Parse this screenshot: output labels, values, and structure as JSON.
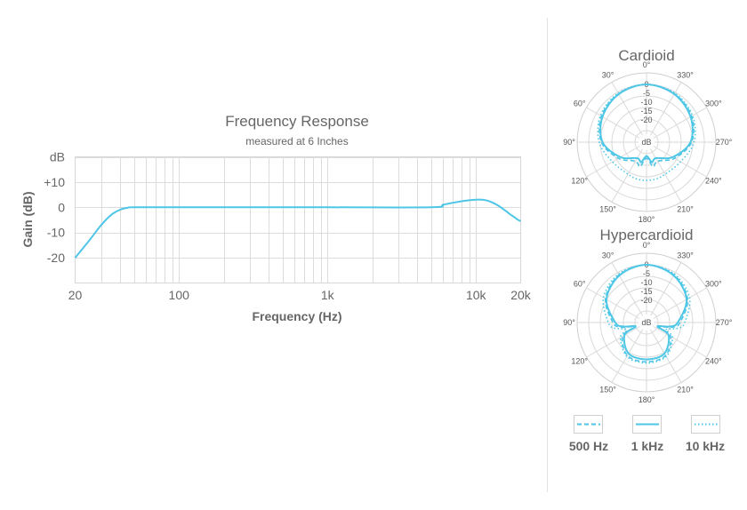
{
  "chart_data": [
    {
      "type": "line",
      "title": "Frequency Response",
      "subtitle": "measured at 6 Inches",
      "xlabel": "Frequency (Hz)",
      "ylabel": "Gain (dB)",
      "x_scale": "log",
      "xlim": [
        20,
        20000
      ],
      "ylim": [
        -30,
        20
      ],
      "x_ticks": [
        {
          "value": 20,
          "label": "20"
        },
        {
          "value": 100,
          "label": "100"
        },
        {
          "value": 1000,
          "label": "1k"
        },
        {
          "value": 10000,
          "label": "10k"
        },
        {
          "value": 20000,
          "label": "20k"
        }
      ],
      "y_ticks": [
        {
          "value": 20,
          "label": "dB"
        },
        {
          "value": 10,
          "label": "+10"
        },
        {
          "value": 0,
          "label": "0"
        },
        {
          "value": -10,
          "label": "-10"
        },
        {
          "value": -20,
          "label": "-20"
        }
      ],
      "grid": true,
      "color": "#4ec6e6",
      "series": [
        {
          "x": [
            20,
            25,
            30,
            35,
            40,
            45,
            50,
            100,
            1000,
            5000,
            6000,
            7000,
            8000,
            9000,
            10000,
            11000,
            12000,
            13000,
            14000,
            15000,
            16000,
            17000,
            18000,
            19000,
            20000
          ],
          "y": [
            -20,
            -13,
            -7,
            -3,
            -1,
            -0.2,
            0,
            0,
            0,
            0,
            1,
            1.8,
            2.4,
            2.8,
            3,
            3,
            2.6,
            1.8,
            0.8,
            -0.4,
            -1.6,
            -2.8,
            -3.8,
            -4.8,
            -5.5
          ]
        }
      ]
    },
    {
      "type": "polar",
      "title": "Cardioid",
      "radial_ticks": [
        "0",
        "-5",
        "-10",
        "-15",
        "-20"
      ],
      "radial_unit": "dB",
      "angle_labels": [
        "0°",
        "30°",
        "60°",
        "90°",
        "120°",
        "150°",
        "180°",
        "210°",
        "240°",
        "270°",
        "300°",
        "330°"
      ],
      "series": [
        {
          "name": "500 Hz",
          "style": "dashed",
          "angles": [
            0,
            30,
            60,
            90,
            120,
            150,
            165,
            180,
            195,
            210,
            240,
            270,
            300,
            330,
            360
          ],
          "db": [
            0,
            -0.8,
            -2.5,
            -5.5,
            -11,
            -15.5,
            -14,
            -18,
            -14,
            -15.5,
            -11,
            -5.5,
            -2.5,
            -0.8,
            0
          ]
        },
        {
          "name": "1 kHz",
          "style": "solid",
          "angles": [
            0,
            30,
            60,
            90,
            120,
            150,
            165,
            180,
            195,
            210,
            240,
            270,
            300,
            330,
            360
          ],
          "db": [
            0,
            -1,
            -3,
            -6,
            -12,
            -17,
            -16,
            -19,
            -16,
            -17,
            -12,
            -6,
            -3,
            -1,
            0
          ]
        },
        {
          "name": "10 kHz",
          "style": "dotted",
          "angles": [
            0,
            30,
            60,
            90,
            120,
            150,
            165,
            180,
            195,
            210,
            240,
            270,
            300,
            330,
            360
          ],
          "db": [
            0,
            -0.5,
            -2,
            -4.5,
            -8,
            -9,
            -8.5,
            -8.5,
            -8.5,
            -9,
            -8,
            -4.5,
            -2,
            -0.5,
            0
          ]
        }
      ]
    },
    {
      "type": "polar",
      "title": "Hypercardioid",
      "radial_ticks": [
        "0",
        "-5",
        "-10",
        "-15",
        "-20"
      ],
      "radial_unit": "dB",
      "angle_labels": [
        "0°",
        "30°",
        "60°",
        "90°",
        "120°",
        "150°",
        "180°",
        "210°",
        "240°",
        "270°",
        "300°",
        "330°"
      ],
      "series": [
        {
          "name": "500 Hz",
          "style": "dashed",
          "angles": [
            0,
            30,
            60,
            90,
            100,
            110,
            120,
            150,
            180,
            210,
            240,
            250,
            260,
            270,
            300,
            330,
            360
          ],
          "db": [
            0,
            -1.2,
            -4.5,
            -10.5,
            -13.5,
            -19,
            -13,
            -8.5,
            -8,
            -8.5,
            -13,
            -19,
            -13.5,
            -10.5,
            -4.5,
            -1.2,
            0
          ]
        },
        {
          "name": "1 kHz",
          "style": "solid",
          "angles": [
            0,
            30,
            60,
            90,
            100,
            110,
            120,
            150,
            180,
            210,
            240,
            250,
            260,
            270,
            300,
            330,
            360
          ],
          "db": [
            0,
            -1.5,
            -5,
            -11.5,
            -15,
            -20,
            -14,
            -9.5,
            -9,
            -9.5,
            -14,
            -20,
            -15,
            -11.5,
            -5,
            -1.5,
            0
          ]
        },
        {
          "name": "10 kHz",
          "style": "dotted",
          "angles": [
            0,
            30,
            60,
            90,
            100,
            110,
            120,
            150,
            180,
            210,
            240,
            250,
            260,
            270,
            300,
            330,
            360
          ],
          "db": [
            0,
            -0.8,
            -3.5,
            -8.5,
            -11,
            -16,
            -12,
            -8,
            -7.5,
            -8,
            -12,
            -16,
            -11,
            -8.5,
            -3.5,
            -0.8,
            0
          ]
        }
      ]
    }
  ],
  "legend": {
    "items": [
      {
        "label": "500 Hz",
        "style": "dashed"
      },
      {
        "label": "1 kHz",
        "style": "solid"
      },
      {
        "label": "10 kHz",
        "style": "dotted"
      }
    ]
  }
}
